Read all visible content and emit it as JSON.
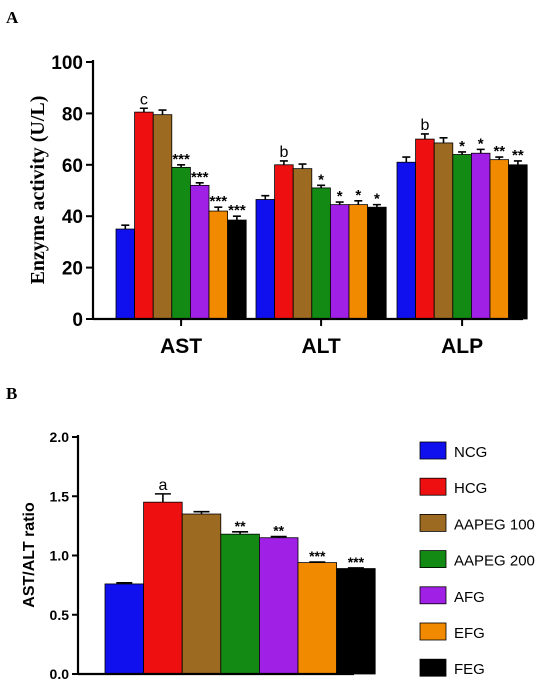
{
  "panel_labels": {
    "a": "A",
    "b": "B"
  },
  "legend": {
    "entries": [
      {
        "label": "NCG",
        "color": "#1010ee"
      },
      {
        "label": "HCG",
        "color": "#ee1010"
      },
      {
        "label": "AAPEG 100",
        "color": "#9c6a20"
      },
      {
        "label": "AAPEG 200",
        "color": "#138a13"
      },
      {
        "label": "AFG",
        "color": "#a020e6"
      },
      {
        "label": "EFG",
        "color": "#f28a00"
      },
      {
        "label": "FEG",
        "color": "#000000"
      }
    ]
  },
  "chart_data": [
    {
      "type": "bar",
      "panel": "A",
      "ylabel": "Enzyme activity (U/L)",
      "xlabel": "",
      "ylim": [
        0,
        100
      ],
      "yticks": [
        "0",
        "20",
        "40",
        "60",
        "80",
        "100"
      ],
      "categories": [
        "AST",
        "ALT",
        "ALP"
      ],
      "series": [
        {
          "name": "NCG",
          "values": [
            35,
            46.5,
            61
          ],
          "errors": [
            1.5,
            1.5,
            2.0
          ],
          "annotations": [
            "",
            "",
            ""
          ]
        },
        {
          "name": "HCG",
          "values": [
            80.5,
            60,
            70
          ],
          "errors": [
            1.5,
            1.5,
            2.0
          ],
          "annotations": [
            "c",
            "b",
            "b"
          ]
        },
        {
          "name": "AAPEG 100",
          "values": [
            79.5,
            58.5,
            68.5
          ],
          "errors": [
            1.8,
            1.8,
            2.0
          ],
          "annotations": [
            "",
            "",
            ""
          ]
        },
        {
          "name": "AAPEG 200",
          "values": [
            59,
            51,
            64
          ],
          "errors": [
            1.0,
            1.0,
            1.0
          ],
          "annotations": [
            "***",
            "*",
            "*"
          ]
        },
        {
          "name": "AFG",
          "values": [
            52,
            44.5,
            64.5
          ],
          "errors": [
            1.0,
            1.0,
            1.5
          ],
          "annotations": [
            "***",
            "*",
            "*"
          ]
        },
        {
          "name": "EFG",
          "values": [
            42,
            44.5,
            62
          ],
          "errors": [
            1.5,
            1.5,
            1.0
          ],
          "annotations": [
            "***",
            "*",
            "**"
          ]
        },
        {
          "name": "FEG",
          "values": [
            38.5,
            43.5,
            60
          ],
          "errors": [
            1.5,
            1.0,
            1.5
          ],
          "annotations": [
            "***",
            "*",
            "**"
          ]
        }
      ]
    },
    {
      "type": "bar",
      "panel": "B",
      "ylabel": "AST/ALT ratio",
      "xlabel": "",
      "ylim": [
        0,
        2
      ],
      "yticks": [
        "0.0",
        "0.5",
        "1.0",
        "1.5",
        "2.0"
      ],
      "categories": [
        "NCG",
        "HCG",
        "AAPEG 100",
        "AAPEG 200",
        "AFG",
        "EFG",
        "FEG"
      ],
      "values": [
        0.76,
        1.45,
        1.35,
        1.18,
        1.15,
        0.94,
        0.89
      ],
      "errors": [
        0.01,
        0.07,
        0.02,
        0.02,
        0.01,
        0.005,
        0.005
      ],
      "annotations": [
        "",
        "a",
        "",
        "**",
        "**",
        "***",
        "***"
      ]
    }
  ]
}
